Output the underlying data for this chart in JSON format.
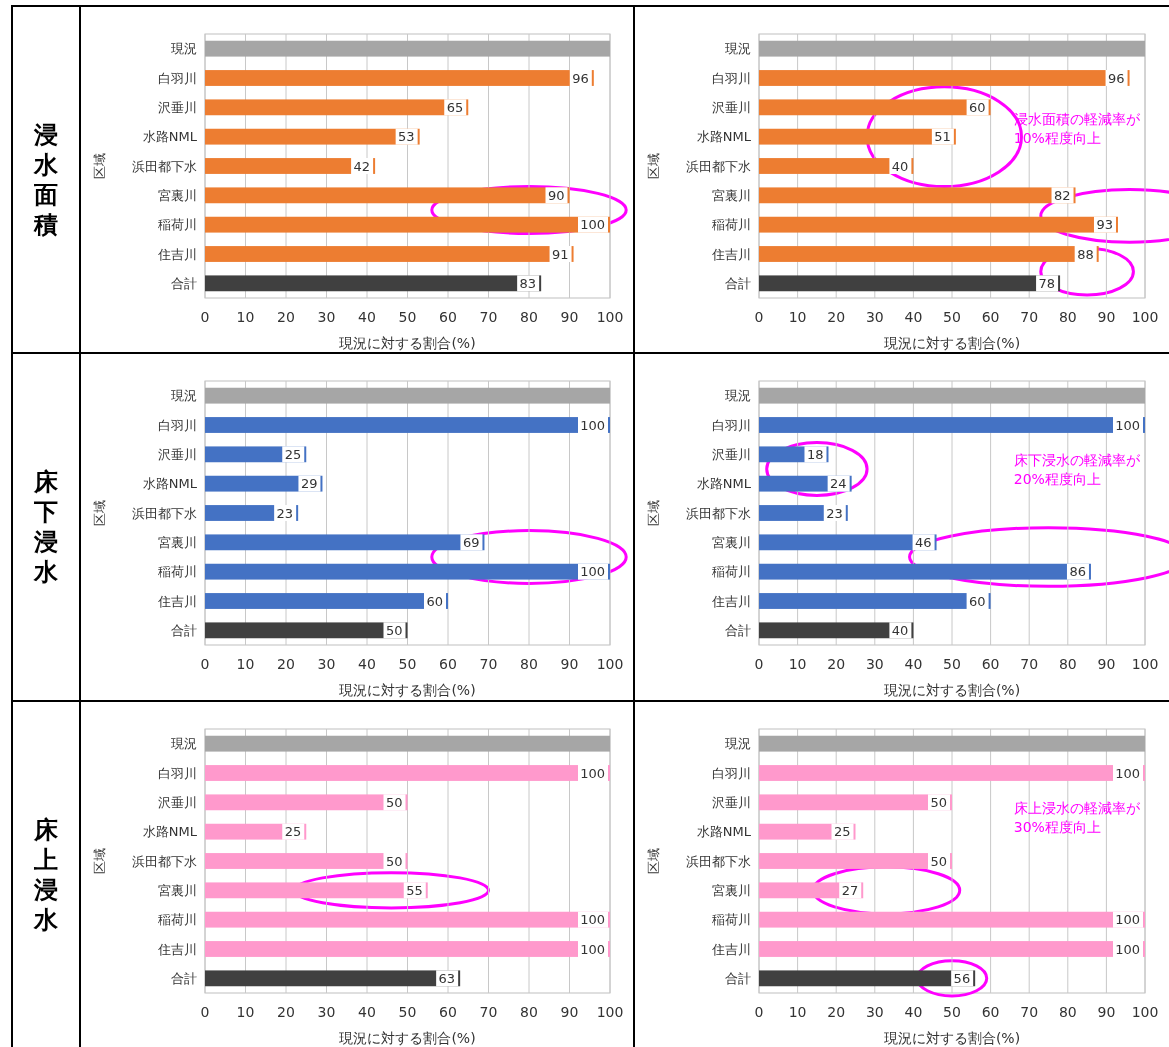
{
  "chart_data": [
    {
      "type": "bar",
      "orientation": "horizontal",
      "title": "浸水面積",
      "ylabel": "区域",
      "xlabel": "現況に対する割合(%)",
      "grid": "x",
      "categories": [
        "現況",
        "白羽川",
        "沢垂川",
        "水路NML",
        "浜田都下水",
        "宮裏川",
        "稲荷川",
        "住吉川",
        "合計"
      ],
      "values": [
        100,
        96,
        65,
        53,
        42,
        90,
        100,
        91,
        83
      ],
      "value_labels": [
        null,
        "96",
        "65",
        "53",
        "42",
        "90",
        "100",
        "91",
        "83"
      ],
      "colors": [
        "#a6a6a6",
        "#ed7d31",
        "#ed7d31",
        "#ed7d31",
        "#ed7d31",
        "#ed7d31",
        "#ed7d31",
        "#ed7d31",
        "#404040"
      ],
      "xlim": [
        0,
        100
      ],
      "xticks": [
        0,
        10,
        20,
        30,
        40,
        50,
        60,
        70,
        80,
        90,
        100
      ]
    },
    {
      "type": "bar",
      "orientation": "horizontal",
      "ylabel": "区域",
      "xlabel": "現況に対する割合(%)",
      "grid": "x",
      "categories": [
        "現況",
        "白羽川",
        "沢垂川",
        "水路NML",
        "浜田都下水",
        "宮裏川",
        "稲荷川",
        "住吉川",
        "合計"
      ],
      "values": [
        100,
        96,
        60,
        51,
        40,
        82,
        93,
        88,
        78
      ],
      "value_labels": [
        null,
        "96",
        "60",
        "51",
        "40",
        "82",
        "93",
        "88",
        "78"
      ],
      "colors": [
        "#a6a6a6",
        "#ed7d31",
        "#ed7d31",
        "#ed7d31",
        "#ed7d31",
        "#ed7d31",
        "#ed7d31",
        "#ed7d31",
        "#404040"
      ],
      "xlim": [
        0,
        100
      ],
      "xticks": [
        0,
        10,
        20,
        30,
        40,
        50,
        60,
        70,
        80,
        90,
        100
      ],
      "annotations": [
        "浸水面積の軽減率が10%程度向上"
      ]
    },
    {
      "type": "bar",
      "orientation": "horizontal",
      "title": "床下浸水",
      "ylabel": "区域",
      "xlabel": "現況に対する割合(%)",
      "grid": "x",
      "categories": [
        "現況",
        "白羽川",
        "沢垂川",
        "水路NML",
        "浜田都下水",
        "宮裏川",
        "稲荷川",
        "住吉川",
        "合計"
      ],
      "values": [
        100,
        100,
        25,
        29,
        23,
        69,
        100,
        60,
        50
      ],
      "value_labels": [
        null,
        "100",
        "25",
        "29",
        "23",
        "69",
        "100",
        "60",
        "50"
      ],
      "colors": [
        "#a6a6a6",
        "#4472c4",
        "#4472c4",
        "#4472c4",
        "#4472c4",
        "#4472c4",
        "#4472c4",
        "#4472c4",
        "#404040"
      ],
      "xlim": [
        0,
        100
      ],
      "xticks": [
        0,
        10,
        20,
        30,
        40,
        50,
        60,
        70,
        80,
        90,
        100
      ]
    },
    {
      "type": "bar",
      "orientation": "horizontal",
      "ylabel": "区域",
      "xlabel": "現況に対する割合(%)",
      "grid": "x",
      "categories": [
        "現況",
        "白羽川",
        "沢垂川",
        "水路NML",
        "浜田都下水",
        "宮裏川",
        "稲荷川",
        "住吉川",
        "合計"
      ],
      "values": [
        100,
        100,
        18,
        24,
        23,
        46,
        86,
        60,
        40
      ],
      "value_labels": [
        null,
        "100",
        "18",
        "24",
        "23",
        "46",
        "86",
        "60",
        "40"
      ],
      "colors": [
        "#a6a6a6",
        "#4472c4",
        "#4472c4",
        "#4472c4",
        "#4472c4",
        "#4472c4",
        "#4472c4",
        "#4472c4",
        "#404040"
      ],
      "xlim": [
        0,
        100
      ],
      "xticks": [
        0,
        10,
        20,
        30,
        40,
        50,
        60,
        70,
        80,
        90,
        100
      ],
      "annotations": [
        "床下浸水の軽減率が20%程度向上"
      ]
    },
    {
      "type": "bar",
      "orientation": "horizontal",
      "title": "床上浸水",
      "ylabel": "区域",
      "xlabel": "現況に対する割合(%)",
      "grid": "x",
      "categories": [
        "現況",
        "白羽川",
        "沢垂川",
        "水路NML",
        "浜田都下水",
        "宮裏川",
        "稲荷川",
        "住吉川",
        "合計"
      ],
      "values": [
        100,
        100,
        50,
        25,
        50,
        55,
        100,
        100,
        63
      ],
      "value_labels": [
        null,
        "100",
        "50",
        "25",
        "50",
        "55",
        "100",
        "100",
        "63"
      ],
      "colors": [
        "#a6a6a6",
        "#ff99cc",
        "#ff99cc",
        "#ff99cc",
        "#ff99cc",
        "#ff99cc",
        "#ff99cc",
        "#ff99cc",
        "#404040"
      ],
      "xlim": [
        0,
        100
      ],
      "xticks": [
        0,
        10,
        20,
        30,
        40,
        50,
        60,
        70,
        80,
        90,
        100
      ]
    },
    {
      "type": "bar",
      "orientation": "horizontal",
      "ylabel": "区域",
      "xlabel": "現況に対する割合(%)",
      "grid": "x",
      "categories": [
        "現況",
        "白羽川",
        "沢垂川",
        "水路NML",
        "浜田都下水",
        "宮裏川",
        "稲荷川",
        "住吉川",
        "合計"
      ],
      "values": [
        100,
        100,
        50,
        25,
        50,
        27,
        100,
        100,
        56
      ],
      "value_labels": [
        null,
        "100",
        "50",
        "25",
        "50",
        "27",
        "100",
        "100",
        "56"
      ],
      "colors": [
        "#a6a6a6",
        "#ff99cc",
        "#ff99cc",
        "#ff99cc",
        "#ff99cc",
        "#ff99cc",
        "#ff99cc",
        "#ff99cc",
        "#404040"
      ],
      "xlim": [
        0,
        100
      ],
      "xticks": [
        0,
        10,
        20,
        30,
        40,
        50,
        60,
        70,
        80,
        90,
        100
      ],
      "annotations": [
        "床上浸水の軽減率が30%程度向上"
      ]
    }
  ]
}
